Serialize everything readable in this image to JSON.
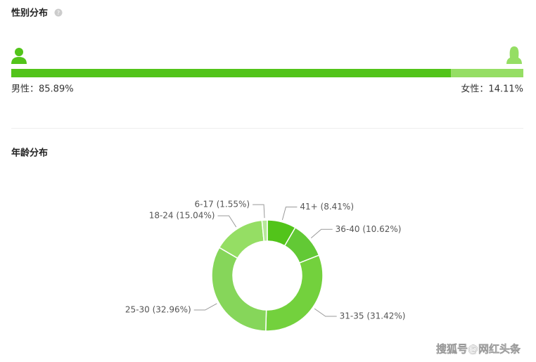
{
  "chart_data": [
    {
      "type": "hbar-stacked",
      "title": "性别分布",
      "series": [
        {
          "color": "#52c41a",
          "values": [
            85.89
          ],
          "value_labels": [
            "男性：85.89%"
          ]
        },
        {
          "color": "#95de64",
          "values": [
            14.11
          ],
          "value_labels": [
            "女性：14.11%"
          ]
        }
      ]
    },
    {
      "type": "pie",
      "title": "年龄分布",
      "values": [
        8.41,
        10.62,
        31.42,
        32.96,
        15.04,
        1.55
      ],
      "value_labels": [
        "41+ (8.41%)",
        "36-40 (10.62%)",
        "31-35 (31.42%)",
        "25-30 (32.96%)",
        "18-24 (15.04%)",
        "6-17 (1.55%)"
      ],
      "colors": [
        "#52c41a",
        "#62c935",
        "#73d13d",
        "#86d65a",
        "#95de64",
        "#b7e89a"
      ]
    }
  ],
  "watermark": "搜狐号@网红头条"
}
